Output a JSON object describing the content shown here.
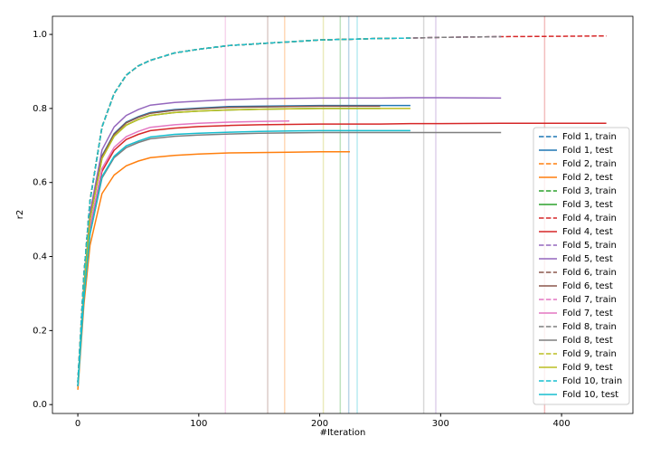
{
  "chart_data": {
    "type": "line",
    "xlabel": "#Iteration",
    "ylabel": "r2",
    "x": [
      0,
      5,
      10,
      20,
      30,
      40,
      50,
      60,
      80,
      100,
      125,
      150,
      175,
      200,
      225,
      250,
      275,
      300,
      350,
      400,
      437
    ],
    "xlim": [
      -21,
      459
    ],
    "xticks": [
      0,
      100,
      200,
      300,
      400
    ],
    "ylim": [
      -0.024,
      1.049
    ],
    "yticks": [
      {
        "value": 0,
        "label": "0.0"
      },
      {
        "value": 0.2,
        "label": "0.2"
      },
      {
        "value": 0.4,
        "label": "0.4"
      },
      {
        "value": 0.6,
        "label": "0.6"
      },
      {
        "value": 0.8,
        "label": "0.8"
      },
      {
        "value": 1.0,
        "label": "1.0"
      }
    ],
    "legend": "lower right",
    "vlines": [
      {
        "value": 122,
        "color": "#e377c2"
      },
      {
        "value": 157,
        "color": "#8c564b"
      },
      {
        "value": 171,
        "color": "#ff7f0e"
      },
      {
        "value": 203,
        "color": "#bcbd22"
      },
      {
        "value": 217,
        "color": "#2ca02c"
      },
      {
        "value": 224,
        "color": "#1f77b4"
      },
      {
        "value": 231,
        "color": "#17becf"
      },
      {
        "value": 286,
        "color": "#7f7f7f"
      },
      {
        "value": 296,
        "color": "#9467bd"
      },
      {
        "value": 386,
        "color": "#d62728"
      }
    ],
    "series": [
      {
        "name": "Fold 1, train",
        "color": "#1f77b4",
        "style": "dashed",
        "values": [
          0.06,
          0.35,
          0.55,
          0.75,
          0.84,
          0.89,
          0.915,
          0.93,
          0.95,
          0.96,
          0.97,
          0.975,
          0.98,
          0.985,
          0.987,
          0.989,
          0.99,
          null,
          null,
          null,
          null
        ]
      },
      {
        "name": "Fold 1, test",
        "color": "#1f77b4",
        "style": "solid",
        "values": [
          0.05,
          0.315,
          0.505,
          0.672,
          0.732,
          0.763,
          0.778,
          0.789,
          0.797,
          0.801,
          0.805,
          0.806,
          0.807,
          0.808,
          0.808,
          0.808,
          0.808,
          null,
          null,
          null,
          null
        ]
      },
      {
        "name": "Fold 2, train",
        "color": "#ff7f0e",
        "style": "dashed",
        "values": [
          0.06,
          0.35,
          0.55,
          0.75,
          0.84,
          0.89,
          0.915,
          0.93,
          0.95,
          0.96,
          0.97,
          0.975,
          0.98,
          0.985,
          0.987,
          null,
          null,
          null,
          null,
          null,
          null
        ]
      },
      {
        "name": "Fold 2, test",
        "color": "#ff7f0e",
        "style": "solid",
        "values": [
          0.04,
          0.27,
          0.43,
          0.57,
          0.62,
          0.645,
          0.658,
          0.667,
          0.673,
          0.677,
          0.68,
          0.681,
          0.682,
          0.683,
          0.683,
          null,
          null,
          null,
          null,
          null,
          null
        ]
      },
      {
        "name": "Fold 3, train",
        "color": "#2ca02c",
        "style": "dashed",
        "values": [
          0.06,
          0.35,
          0.55,
          0.75,
          0.84,
          0.89,
          0.915,
          0.93,
          0.95,
          0.96,
          0.97,
          0.975,
          0.98,
          0.985,
          0.987,
          0.989,
          null,
          null,
          null,
          null,
          null
        ]
      },
      {
        "name": "Fold 3, test",
        "color": "#2ca02c",
        "style": "solid",
        "values": [
          0.05,
          0.31,
          0.5,
          0.665,
          0.725,
          0.755,
          0.77,
          0.781,
          0.789,
          0.793,
          0.796,
          0.798,
          0.799,
          0.8,
          0.8,
          0.8,
          null,
          null,
          null,
          null,
          null
        ]
      },
      {
        "name": "Fold 4, train",
        "color": "#d62728",
        "style": "dashed",
        "values": [
          0.06,
          0.35,
          0.55,
          0.75,
          0.84,
          0.89,
          0.915,
          0.93,
          0.95,
          0.96,
          0.97,
          0.975,
          0.98,
          0.985,
          0.987,
          0.989,
          0.99,
          0.992,
          0.994,
          0.995,
          0.996
        ]
      },
      {
        "name": "Fold 4, test",
        "color": "#d62728",
        "style": "solid",
        "values": [
          0.05,
          0.3,
          0.475,
          0.63,
          0.687,
          0.716,
          0.73,
          0.74,
          0.747,
          0.751,
          0.754,
          0.756,
          0.757,
          0.758,
          0.758,
          0.758,
          0.759,
          0.759,
          0.76,
          0.76,
          0.76
        ]
      },
      {
        "name": "Fold 5, train",
        "color": "#9467bd",
        "style": "dashed",
        "values": [
          0.06,
          0.35,
          0.55,
          0.75,
          0.84,
          0.89,
          0.915,
          0.93,
          0.95,
          0.96,
          0.97,
          0.975,
          0.98,
          0.985,
          0.987,
          0.989,
          0.99,
          0.992,
          0.994,
          null,
          null
        ]
      },
      {
        "name": "Fold 5, test",
        "color": "#9467bd",
        "style": "solid",
        "values": [
          0.05,
          0.32,
          0.517,
          0.688,
          0.75,
          0.781,
          0.797,
          0.809,
          0.816,
          0.82,
          0.824,
          0.826,
          0.827,
          0.828,
          0.828,
          0.828,
          0.829,
          0.829,
          0.828,
          null,
          null
        ]
      },
      {
        "name": "Fold 6, train",
        "color": "#8c564b",
        "style": "dashed",
        "values": [
          0.06,
          0.35,
          0.55,
          0.75,
          0.84,
          0.89,
          0.915,
          0.93,
          0.95,
          0.96,
          0.97,
          0.975,
          0.98,
          0.985,
          0.987,
          0.989,
          null,
          null,
          null,
          null,
          null
        ]
      },
      {
        "name": "Fold 6, test",
        "color": "#8c564b",
        "style": "solid",
        "values": [
          0.05,
          0.313,
          0.503,
          0.67,
          0.73,
          0.761,
          0.776,
          0.787,
          0.795,
          0.799,
          0.803,
          0.804,
          0.805,
          0.806,
          0.806,
          0.806,
          null,
          null,
          null,
          null,
          null
        ]
      },
      {
        "name": "Fold 7, train",
        "color": "#e377c2",
        "style": "dashed",
        "values": [
          0.06,
          0.35,
          0.55,
          0.75,
          0.84,
          0.89,
          0.915,
          0.93,
          0.95,
          0.96,
          0.97,
          0.975,
          0.98,
          null,
          null,
          null,
          null,
          null,
          null,
          null,
          null
        ]
      },
      {
        "name": "Fold 7, test",
        "color": "#e377c2",
        "style": "solid",
        "values": [
          0.05,
          0.3,
          0.48,
          0.638,
          0.695,
          0.724,
          0.738,
          0.749,
          0.756,
          0.76,
          0.763,
          0.765,
          0.766,
          null,
          null,
          null,
          null,
          null,
          null,
          null,
          null
        ]
      },
      {
        "name": "Fold 8, train",
        "color": "#7f7f7f",
        "style": "dashed",
        "values": [
          0.06,
          0.35,
          0.55,
          0.75,
          0.84,
          0.89,
          0.915,
          0.93,
          0.95,
          0.96,
          0.97,
          0.975,
          0.98,
          0.985,
          0.987,
          0.989,
          0.99,
          0.992,
          0.994,
          null,
          null
        ]
      },
      {
        "name": "Fold 8, test",
        "color": "#7f7f7f",
        "style": "solid",
        "values": [
          0.05,
          0.29,
          0.46,
          0.612,
          0.667,
          0.694,
          0.708,
          0.718,
          0.725,
          0.728,
          0.731,
          0.733,
          0.734,
          0.735,
          0.735,
          0.735,
          0.735,
          0.735,
          0.735,
          null,
          null
        ]
      },
      {
        "name": "Fold 9, train",
        "color": "#bcbd22",
        "style": "dashed",
        "values": [
          0.06,
          0.35,
          0.55,
          0.75,
          0.84,
          0.89,
          0.915,
          0.93,
          0.95,
          0.96,
          0.97,
          0.975,
          0.98,
          0.985,
          0.987,
          0.989,
          0.99,
          null,
          null,
          null,
          null
        ]
      },
      {
        "name": "Fold 9, test",
        "color": "#bcbd22",
        "style": "solid",
        "values": [
          0.05,
          0.31,
          0.5,
          0.665,
          0.725,
          0.755,
          0.77,
          0.781,
          0.789,
          0.793,
          0.796,
          0.798,
          0.799,
          0.8,
          0.8,
          0.8,
          0.8,
          null,
          null,
          null,
          null
        ]
      },
      {
        "name": "Fold 10, train",
        "color": "#17becf",
        "style": "dashed",
        "values": [
          0.06,
          0.35,
          0.55,
          0.75,
          0.84,
          0.89,
          0.915,
          0.93,
          0.95,
          0.96,
          0.97,
          0.975,
          0.98,
          0.985,
          0.987,
          0.989,
          0.99,
          null,
          null,
          null,
          null
        ]
      },
      {
        "name": "Fold 10, test",
        "color": "#17becf",
        "style": "solid",
        "values": [
          0.05,
          0.29,
          0.46,
          0.616,
          0.671,
          0.699,
          0.712,
          0.723,
          0.73,
          0.733,
          0.736,
          0.738,
          0.739,
          0.74,
          0.74,
          0.74,
          0.74,
          null,
          null,
          null,
          null
        ]
      }
    ]
  }
}
